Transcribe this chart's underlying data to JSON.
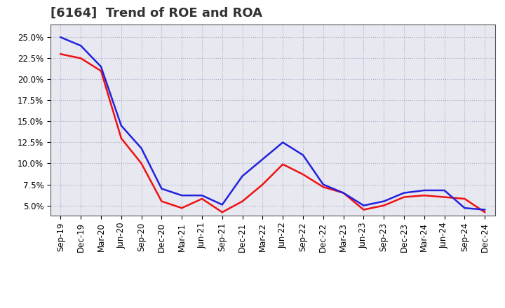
{
  "title": "[6164]  Trend of ROE and ROA",
  "x_labels": [
    "Sep-19",
    "Dec-19",
    "Mar-20",
    "Jun-20",
    "Sep-20",
    "Dec-20",
    "Mar-21",
    "Jun-21",
    "Sep-21",
    "Dec-21",
    "Mar-22",
    "Jun-22",
    "Sep-22",
    "Dec-22",
    "Mar-23",
    "Jun-23",
    "Sep-23",
    "Dec-23",
    "Mar-24",
    "Jun-24",
    "Sep-24",
    "Dec-24"
  ],
  "roe": [
    23.0,
    22.5,
    21.0,
    13.0,
    10.0,
    5.5,
    4.7,
    5.8,
    4.2,
    5.5,
    7.5,
    9.9,
    8.7,
    7.2,
    6.5,
    4.5,
    5.0,
    6.0,
    6.2,
    6.0,
    5.8,
    4.2
  ],
  "roa": [
    25.0,
    24.0,
    21.5,
    14.5,
    11.8,
    7.0,
    6.2,
    6.2,
    5.1,
    8.5,
    10.5,
    12.5,
    11.0,
    7.5,
    6.5,
    5.0,
    5.5,
    6.5,
    6.8,
    6.8,
    4.7,
    4.5
  ],
  "roe_color": "#ee1111",
  "roa_color": "#2222dd",
  "ylabel_ticks": [
    5.0,
    7.5,
    10.0,
    12.5,
    15.0,
    17.5,
    20.0,
    22.5,
    25.0
  ],
  "ylim": [
    3.8,
    26.5
  ],
  "background_color": "#ffffff",
  "plot_bg_color": "#e8e8f0",
  "grid_color": "#aaaacc",
  "line_width": 1.8,
  "title_fontsize": 13,
  "legend_fontsize": 10,
  "tick_fontsize": 8.5
}
